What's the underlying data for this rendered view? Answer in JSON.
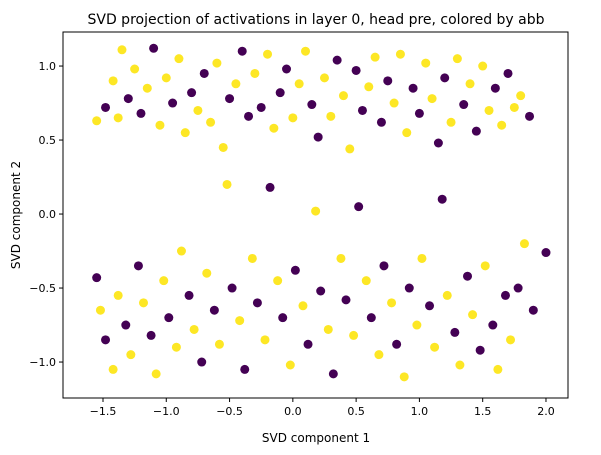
{
  "chart_data": {
    "type": "scatter",
    "title": "SVD projection of activations in layer 0, head pre, colored by abb",
    "xlabel": "SVD component 1",
    "ylabel": "SVD component 2",
    "xlim": [
      -1.816,
      2.174
    ],
    "ylim": [
      -1.243,
      1.23
    ],
    "xticks": [
      -1.5,
      -1.0,
      -0.5,
      0.0,
      0.5,
      1.0,
      1.5,
      2.0
    ],
    "xtick_labels": [
      "−1.5",
      "−1.0",
      "−0.5",
      "0.0",
      "0.5",
      "1.0",
      "1.5",
      "2.0"
    ],
    "yticks": [
      -1.0,
      -0.5,
      0.0,
      0.5,
      1.0
    ],
    "ytick_labels": [
      "−1.0",
      "−0.5",
      "0.0",
      "0.5",
      "1.0"
    ],
    "grid": false,
    "colors": {
      "0": "#440154",
      "1": "#fde725"
    },
    "points": [
      [
        -1.55,
        0.63,
        1
      ],
      [
        -1.48,
        0.72,
        0
      ],
      [
        -1.42,
        0.9,
        1
      ],
      [
        -1.38,
        0.65,
        1
      ],
      [
        -1.35,
        1.11,
        1
      ],
      [
        -1.3,
        0.78,
        0
      ],
      [
        -1.25,
        0.98,
        1
      ],
      [
        -1.2,
        0.68,
        0
      ],
      [
        -1.15,
        0.85,
        1
      ],
      [
        -1.1,
        1.12,
        0
      ],
      [
        -1.05,
        0.6,
        1
      ],
      [
        -1.0,
        0.92,
        1
      ],
      [
        -0.95,
        0.75,
        0
      ],
      [
        -0.9,
        1.05,
        1
      ],
      [
        -0.85,
        0.55,
        1
      ],
      [
        -0.8,
        0.82,
        0
      ],
      [
        -0.75,
        0.7,
        1
      ],
      [
        -0.7,
        0.95,
        0
      ],
      [
        -0.65,
        0.62,
        1
      ],
      [
        -0.6,
        1.02,
        1
      ],
      [
        -0.55,
        0.45,
        1
      ],
      [
        -0.5,
        0.78,
        0
      ],
      [
        -0.45,
        0.88,
        1
      ],
      [
        -0.4,
        1.1,
        0
      ],
      [
        -0.35,
        0.66,
        0
      ],
      [
        -0.3,
        0.95,
        1
      ],
      [
        -0.25,
        0.72,
        0
      ],
      [
        -0.2,
        1.08,
        1
      ],
      [
        -0.15,
        0.58,
        1
      ],
      [
        -0.1,
        0.82,
        0
      ],
      [
        -0.05,
        0.98,
        0
      ],
      [
        0.0,
        0.65,
        1
      ],
      [
        0.05,
        0.88,
        1
      ],
      [
        0.1,
        1.1,
        1
      ],
      [
        0.15,
        0.74,
        0
      ],
      [
        0.2,
        0.52,
        0
      ],
      [
        0.25,
        0.92,
        1
      ],
      [
        0.3,
        0.66,
        1
      ],
      [
        0.35,
        1.04,
        0
      ],
      [
        0.4,
        0.8,
        1
      ],
      [
        0.45,
        0.44,
        1
      ],
      [
        0.5,
        0.97,
        0
      ],
      [
        0.55,
        0.7,
        0
      ],
      [
        0.6,
        0.86,
        1
      ],
      [
        0.65,
        1.06,
        1
      ],
      [
        0.7,
        0.62,
        0
      ],
      [
        0.75,
        0.9,
        0
      ],
      [
        0.8,
        0.75,
        1
      ],
      [
        0.85,
        1.08,
        1
      ],
      [
        0.9,
        0.55,
        1
      ],
      [
        0.95,
        0.85,
        0
      ],
      [
        1.0,
        0.68,
        0
      ],
      [
        1.05,
        1.02,
        1
      ],
      [
        1.1,
        0.78,
        1
      ],
      [
        1.15,
        0.48,
        0
      ],
      [
        1.2,
        0.92,
        0
      ],
      [
        1.25,
        0.62,
        1
      ],
      [
        1.3,
        1.05,
        1
      ],
      [
        1.35,
        0.74,
        0
      ],
      [
        1.4,
        0.88,
        1
      ],
      [
        1.45,
        0.56,
        0
      ],
      [
        1.5,
        1.0,
        1
      ],
      [
        1.55,
        0.7,
        1
      ],
      [
        1.6,
        0.85,
        0
      ],
      [
        1.65,
        0.6,
        1
      ],
      [
        1.7,
        0.95,
        0
      ],
      [
        1.75,
        0.72,
        1
      ],
      [
        1.8,
        0.8,
        1
      ],
      [
        1.87,
        0.66,
        0
      ],
      [
        -1.55,
        -0.43,
        0
      ],
      [
        -1.52,
        -0.65,
        1
      ],
      [
        -1.48,
        -0.85,
        0
      ],
      [
        -1.42,
        -1.05,
        1
      ],
      [
        -1.38,
        -0.55,
        1
      ],
      [
        -1.32,
        -0.75,
        0
      ],
      [
        -1.28,
        -0.95,
        1
      ],
      [
        -1.22,
        -0.35,
        0
      ],
      [
        -1.18,
        -0.6,
        1
      ],
      [
        -1.12,
        -0.82,
        0
      ],
      [
        -1.08,
        -1.08,
        1
      ],
      [
        -1.02,
        -0.45,
        1
      ],
      [
        -0.98,
        -0.7,
        0
      ],
      [
        -0.92,
        -0.9,
        1
      ],
      [
        -0.88,
        -0.25,
        1
      ],
      [
        -0.82,
        -0.55,
        0
      ],
      [
        -0.78,
        -0.78,
        1
      ],
      [
        -0.72,
        -1.0,
        0
      ],
      [
        -0.68,
        -0.4,
        1
      ],
      [
        -0.62,
        -0.65,
        0
      ],
      [
        -0.58,
        -0.88,
        1
      ],
      [
        -0.52,
        0.2,
        1
      ],
      [
        -0.48,
        -0.5,
        0
      ],
      [
        -0.42,
        -0.72,
        1
      ],
      [
        -0.38,
        -1.05,
        0
      ],
      [
        -0.32,
        -0.3,
        1
      ],
      [
        -0.28,
        -0.6,
        0
      ],
      [
        -0.22,
        -0.85,
        1
      ],
      [
        -0.18,
        0.18,
        0
      ],
      [
        -0.12,
        -0.45,
        1
      ],
      [
        -0.08,
        -0.7,
        0
      ],
      [
        -0.02,
        -1.02,
        1
      ],
      [
        0.02,
        -0.38,
        0
      ],
      [
        0.08,
        -0.62,
        1
      ],
      [
        0.12,
        -0.88,
        0
      ],
      [
        0.18,
        0.02,
        1
      ],
      [
        0.22,
        -0.52,
        0
      ],
      [
        0.28,
        -0.78,
        1
      ],
      [
        0.32,
        -1.08,
        0
      ],
      [
        0.38,
        -0.3,
        1
      ],
      [
        0.42,
        -0.58,
        0
      ],
      [
        0.48,
        -0.82,
        1
      ],
      [
        0.52,
        0.05,
        0
      ],
      [
        0.58,
        -0.45,
        1
      ],
      [
        0.62,
        -0.7,
        0
      ],
      [
        0.68,
        -0.95,
        1
      ],
      [
        0.72,
        -0.35,
        0
      ],
      [
        0.78,
        -0.6,
        1
      ],
      [
        0.82,
        -0.88,
        0
      ],
      [
        0.88,
        -1.1,
        1
      ],
      [
        0.92,
        -0.5,
        0
      ],
      [
        0.98,
        -0.75,
        1
      ],
      [
        1.02,
        -0.3,
        1
      ],
      [
        1.08,
        -0.62,
        0
      ],
      [
        1.12,
        -0.9,
        1
      ],
      [
        1.18,
        0.1,
        0
      ],
      [
        1.22,
        -0.55,
        1
      ],
      [
        1.28,
        -0.8,
        0
      ],
      [
        1.32,
        -1.02,
        1
      ],
      [
        1.38,
        -0.42,
        0
      ],
      [
        1.42,
        -0.68,
        1
      ],
      [
        1.48,
        -0.92,
        0
      ],
      [
        1.52,
        -0.35,
        1
      ],
      [
        1.58,
        -0.75,
        0
      ],
      [
        1.62,
        -1.05,
        1
      ],
      [
        1.68,
        -0.55,
        0
      ],
      [
        1.72,
        -0.85,
        1
      ],
      [
        1.78,
        -0.5,
        0
      ],
      [
        1.83,
        -0.2,
        1
      ],
      [
        1.9,
        -0.65,
        0
      ],
      [
        2.0,
        -0.26,
        0
      ]
    ]
  }
}
